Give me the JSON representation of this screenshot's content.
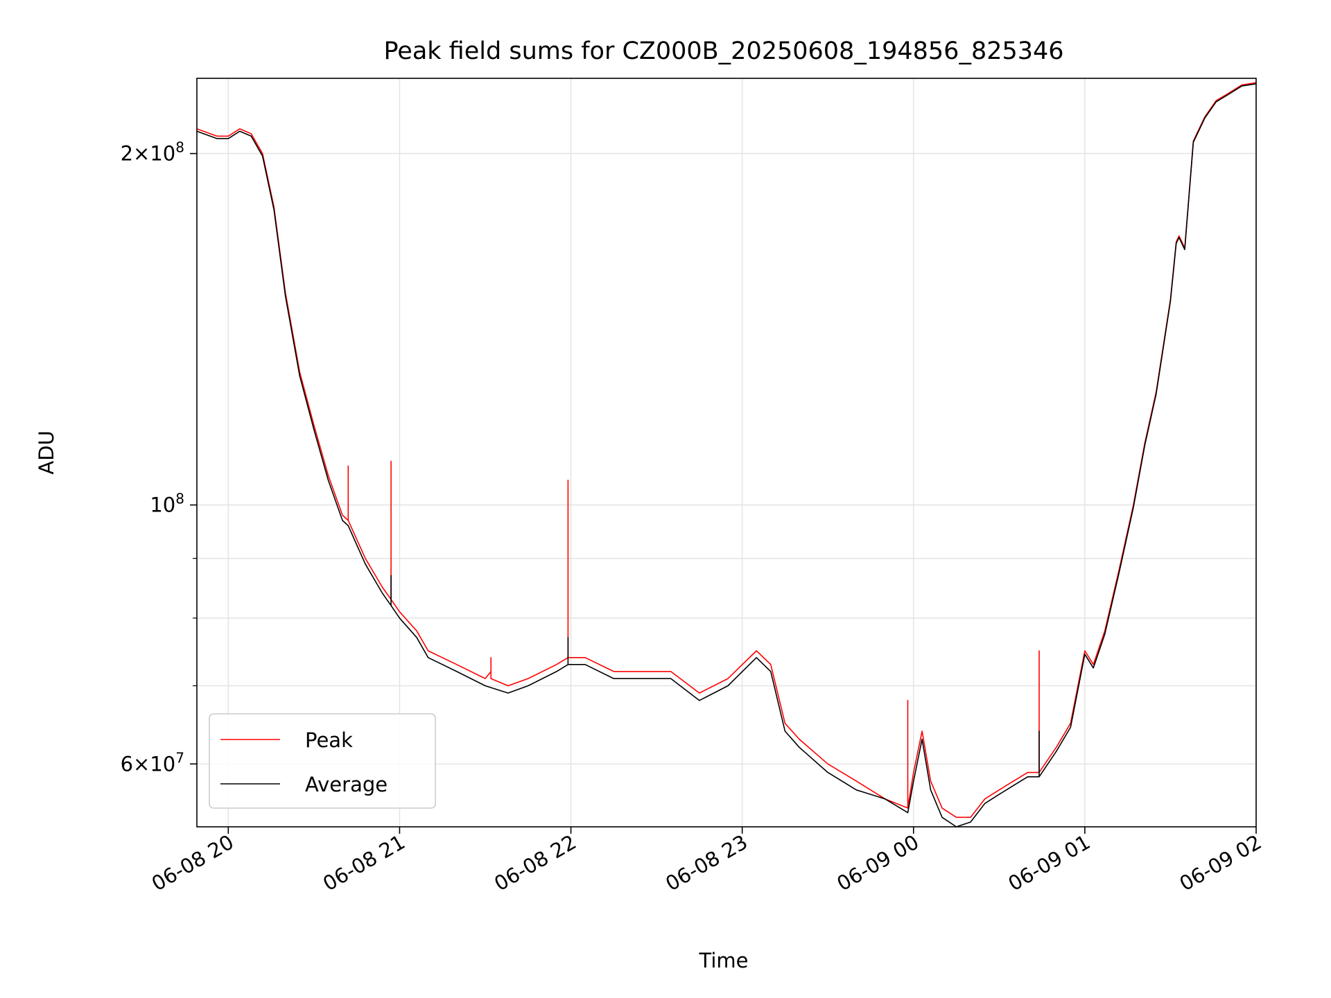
{
  "chart_data": {
    "type": "line",
    "title": "Peak field sums for CZ000B_20250608_194856_825346",
    "xlabel": "Time",
    "ylabel": "ADU",
    "y_scale": "log",
    "grid": true,
    "legend_position": "lower-left",
    "xlim": [
      "2025-06-08 19:49",
      "2025-06-09 02:00"
    ],
    "ylim": [
      53000000,
      232000000
    ],
    "x_ticks": [
      "06-08 20",
      "06-08 21",
      "06-08 22",
      "06-08 23",
      "06-09 00",
      "06-09 01",
      "06-09 02"
    ],
    "x_tick_values": [
      "2025-06-08 20:00",
      "2025-06-08 21:00",
      "2025-06-08 22:00",
      "2025-06-08 23:00",
      "2025-06-09 00:00",
      "2025-06-09 01:00",
      "2025-06-09 02:00"
    ],
    "y_major_ticks": [
      {
        "value": 60000000,
        "mantissa": "6",
        "exponent": "7"
      },
      {
        "value": 100000000,
        "mantissa": "",
        "exponent": "8"
      },
      {
        "value": 200000000,
        "mantissa": "2",
        "exponent": "8"
      }
    ],
    "y_minor_grid": [
      70000000,
      80000000,
      90000000
    ],
    "series": [
      {
        "name": "Peak",
        "color": "#ff0000",
        "x": [
          "2025-06-08 19:49",
          "2025-06-08 19:56",
          "2025-06-08 20:00",
          "2025-06-08 20:04",
          "2025-06-08 20:08",
          "2025-06-08 20:12",
          "2025-06-08 20:16",
          "2025-06-08 20:20",
          "2025-06-08 20:25",
          "2025-06-08 20:30",
          "2025-06-08 20:35",
          "2025-06-08 20:40",
          "2025-06-08 20:42",
          "2025-06-08 20:42",
          "2025-06-08 20:42",
          "2025-06-08 20:48",
          "2025-06-08 20:54",
          "2025-06-08 20:57",
          "2025-06-08 20:57",
          "2025-06-08 20:57",
          "2025-06-08 21:00",
          "2025-06-08 21:06",
          "2025-06-08 21:10",
          "2025-06-08 21:20",
          "2025-06-08 21:30",
          "2025-06-08 21:32",
          "2025-06-08 21:32",
          "2025-06-08 21:32",
          "2025-06-08 21:38",
          "2025-06-08 21:45",
          "2025-06-08 21:55",
          "2025-06-08 21:59",
          "2025-06-08 21:59",
          "2025-06-08 21:59",
          "2025-06-08 22:05",
          "2025-06-08 22:15",
          "2025-06-08 22:25",
          "2025-06-08 22:35",
          "2025-06-08 22:45",
          "2025-06-08 22:55",
          "2025-06-08 23:05",
          "2025-06-08 23:10",
          "2025-06-08 23:15",
          "2025-06-08 23:20",
          "2025-06-08 23:30",
          "2025-06-08 23:40",
          "2025-06-08 23:50",
          "2025-06-08 23:58",
          "2025-06-08 23:58",
          "2025-06-08 23:58",
          "2025-06-09 00:00",
          "2025-06-09 00:03",
          "2025-06-09 00:06",
          "2025-06-09 00:10",
          "2025-06-09 00:15",
          "2025-06-09 00:20",
          "2025-06-09 00:25",
          "2025-06-09 00:30",
          "2025-06-09 00:35",
          "2025-06-09 00:40",
          "2025-06-09 00:44",
          "2025-06-09 00:44",
          "2025-06-09 00:44",
          "2025-06-09 00:50",
          "2025-06-09 00:55",
          "2025-06-09 01:00",
          "2025-06-09 01:03",
          "2025-06-09 01:07",
          "2025-06-09 01:12",
          "2025-06-09 01:17",
          "2025-06-09 01:21",
          "2025-06-09 01:25",
          "2025-06-09 01:30",
          "2025-06-09 01:32",
          "2025-06-09 01:33",
          "2025-06-09 01:35",
          "2025-06-09 01:38",
          "2025-06-09 01:42",
          "2025-06-09 01:46",
          "2025-06-09 01:50",
          "2025-06-09 01:55",
          "2025-06-09 02:00"
        ],
        "values": [
          210000000,
          207000000,
          207000000,
          210000000,
          208000000,
          200000000,
          180000000,
          152000000,
          130000000,
          117000000,
          106000000,
          98000000,
          97000000,
          108000000,
          97000000,
          90000000,
          85000000,
          83000000,
          109000000,
          83000000,
          81000000,
          78000000,
          75000000,
          73000000,
          71000000,
          72000000,
          74000000,
          71000000,
          70000000,
          71000000,
          73000000,
          74000000,
          105000000,
          74000000,
          74000000,
          72000000,
          72000000,
          72000000,
          69000000,
          71000000,
          75000000,
          73000000,
          65000000,
          63000000,
          60000000,
          58000000,
          56000000,
          55000000,
          68000000,
          55000000,
          59000000,
          64000000,
          58000000,
          55000000,
          54000000,
          54000000,
          56000000,
          57000000,
          58000000,
          59000000,
          59000000,
          75000000,
          59000000,
          62000000,
          65000000,
          75000000,
          73000000,
          78000000,
          88000000,
          100000000,
          113000000,
          125000000,
          150000000,
          168000000,
          170000000,
          166000000,
          205000000,
          215000000,
          222000000,
          225000000,
          229000000,
          230000000
        ]
      },
      {
        "name": "Average",
        "color": "#000000",
        "x": [
          "2025-06-08 19:49",
          "2025-06-08 19:56",
          "2025-06-08 20:00",
          "2025-06-08 20:04",
          "2025-06-08 20:08",
          "2025-06-08 20:12",
          "2025-06-08 20:16",
          "2025-06-08 20:20",
          "2025-06-08 20:25",
          "2025-06-08 20:30",
          "2025-06-08 20:35",
          "2025-06-08 20:40",
          "2025-06-08 20:42",
          "2025-06-08 20:48",
          "2025-06-08 20:54",
          "2025-06-08 20:57",
          "2025-06-08 20:57",
          "2025-06-08 20:57",
          "2025-06-08 21:00",
          "2025-06-08 21:06",
          "2025-06-08 21:10",
          "2025-06-08 21:20",
          "2025-06-08 21:30",
          "2025-06-08 21:38",
          "2025-06-08 21:45",
          "2025-06-08 21:55",
          "2025-06-08 21:59",
          "2025-06-08 21:59",
          "2025-06-08 21:59",
          "2025-06-08 22:05",
          "2025-06-08 22:15",
          "2025-06-08 22:25",
          "2025-06-08 22:35",
          "2025-06-08 22:45",
          "2025-06-08 22:55",
          "2025-06-08 23:05",
          "2025-06-08 23:10",
          "2025-06-08 23:15",
          "2025-06-08 23:20",
          "2025-06-08 23:30",
          "2025-06-08 23:40",
          "2025-06-08 23:50",
          "2025-06-08 23:58",
          "2025-06-09 00:00",
          "2025-06-09 00:03",
          "2025-06-09 00:06",
          "2025-06-09 00:10",
          "2025-06-09 00:15",
          "2025-06-09 00:20",
          "2025-06-09 00:25",
          "2025-06-09 00:30",
          "2025-06-09 00:35",
          "2025-06-09 00:40",
          "2025-06-09 00:44",
          "2025-06-09 00:44",
          "2025-06-09 00:44",
          "2025-06-09 00:50",
          "2025-06-09 00:55",
          "2025-06-09 01:00",
          "2025-06-09 01:03",
          "2025-06-09 01:07",
          "2025-06-09 01:12",
          "2025-06-09 01:17",
          "2025-06-09 01:21",
          "2025-06-09 01:25",
          "2025-06-09 01:30",
          "2025-06-09 01:32",
          "2025-06-09 01:33",
          "2025-06-09 01:35",
          "2025-06-09 01:38",
          "2025-06-09 01:42",
          "2025-06-09 01:46",
          "2025-06-09 01:50",
          "2025-06-09 01:55",
          "2025-06-09 02:00"
        ],
        "values": [
          209000000,
          206000000,
          206000000,
          209000000,
          207000000,
          199000000,
          179000000,
          151000000,
          129000000,
          116000000,
          105000000,
          97000000,
          96000000,
          89000000,
          84000000,
          82000000,
          87000000,
          82000000,
          80000000,
          77000000,
          74000000,
          72000000,
          70000000,
          69000000,
          70000000,
          72000000,
          73000000,
          77000000,
          73000000,
          73000000,
          71000000,
          71000000,
          71000000,
          68000000,
          70000000,
          74000000,
          72000000,
          64000000,
          62000000,
          59000000,
          57000000,
          56000000,
          54500000,
          58000000,
          63000000,
          57000000,
          54000000,
          53000000,
          53500000,
          55500000,
          56500000,
          57500000,
          58500000,
          58500000,
          64000000,
          58500000,
          61500000,
          64500000,
          74500000,
          72500000,
          77500000,
          87500000,
          99500000,
          112500000,
          124500000,
          149500000,
          167500000,
          169500000,
          165500000,
          204500000,
          214500000,
          221500000,
          224500000,
          228500000,
          229500000
        ]
      }
    ]
  }
}
